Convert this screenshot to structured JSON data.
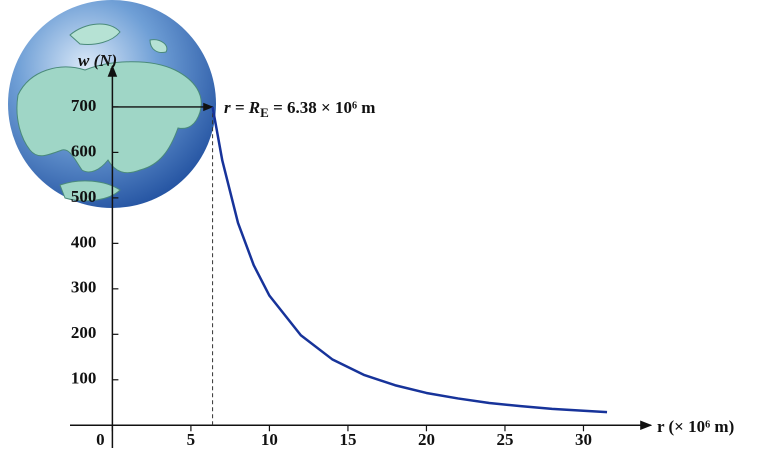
{
  "chart_data": {
    "type": "line",
    "y_label": "w (N)",
    "x_label": "r (× 10⁶ m)",
    "annotation": [
      "r = R",
      "E",
      " = 6.38 × 10⁶ m"
    ],
    "x": [
      6.38,
      7,
      8,
      9,
      10,
      12,
      14,
      16,
      18,
      20,
      22,
      24,
      26,
      28,
      30,
      31.5
    ],
    "series": [
      {
        "color": "#17339a",
        "values": [
          700,
          582,
          445,
          352,
          285,
          198,
          145,
          111,
          88,
          71,
          59,
          49,
          42,
          36,
          32,
          29
        ]
      }
    ],
    "xlim": [
      -2.7,
      34.3
    ],
    "ylim": [
      -50,
      790
    ],
    "xticks": [
      0,
      5,
      10,
      15,
      20,
      25,
      30
    ],
    "yticks": [
      100,
      200,
      300,
      400,
      500,
      600,
      700
    ]
  }
}
